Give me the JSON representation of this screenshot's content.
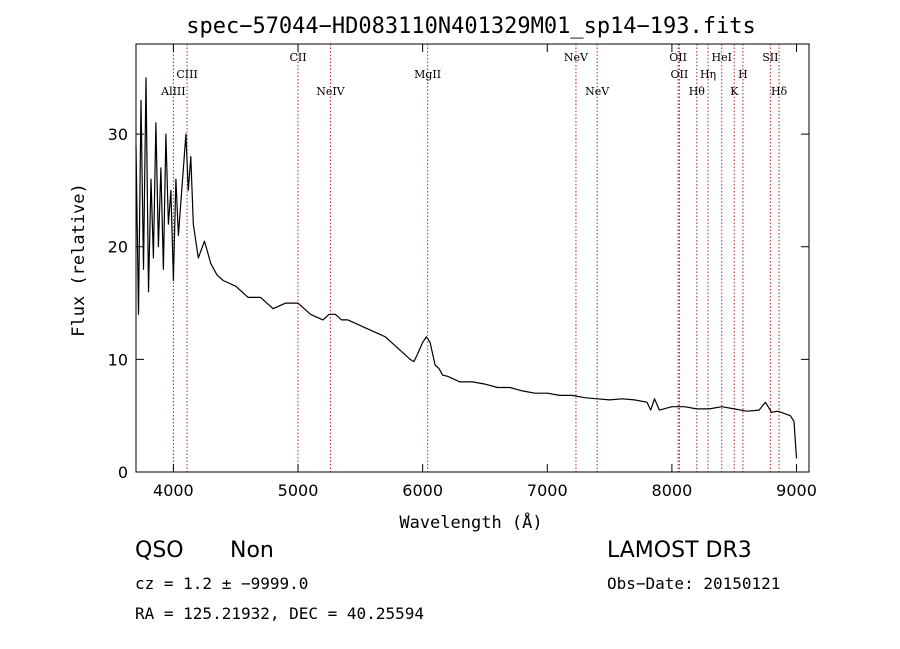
{
  "chart_data": {
    "type": "line",
    "title": "spec−57044−HD083110N401329M01_sp14−193.fits",
    "xlabel": "Wavelength (Å)",
    "ylabel": "Flux (relative)",
    "xlim": [
      3700,
      9100
    ],
    "ylim": [
      0,
      38
    ],
    "xticks": [
      4000,
      5000,
      6000,
      7000,
      8000,
      9000
    ],
    "yticks": [
      0,
      10,
      20,
      30
    ],
    "grid": false,
    "series": [
      {
        "name": "spectrum",
        "color": "#000000",
        "x": [
          3700,
          3720,
          3740,
          3760,
          3780,
          3800,
          3820,
          3840,
          3860,
          3880,
          3900,
          3920,
          3940,
          3960,
          3980,
          4000,
          4020,
          4040,
          4060,
          4080,
          4100,
          4120,
          4140,
          4160,
          4200,
          4250,
          4300,
          4350,
          4400,
          4500,
          4600,
          4700,
          4800,
          4900,
          5000,
          5100,
          5200,
          5250,
          5300,
          5350,
          5400,
          5500,
          5600,
          5700,
          5800,
          5850,
          5900,
          5930,
          5960,
          6000,
          6030,
          6060,
          6080,
          6100,
          6130,
          6160,
          6200,
          6300,
          6400,
          6500,
          6600,
          6700,
          6800,
          6900,
          7000,
          7100,
          7200,
          7300,
          7400,
          7500,
          7600,
          7700,
          7800,
          7830,
          7860,
          7900,
          8000,
          8100,
          8200,
          8300,
          8400,
          8500,
          8600,
          8700,
          8750,
          8800,
          8850,
          8900,
          8950,
          8980,
          9000
        ],
        "y": [
          29,
          14,
          33,
          18,
          35,
          16,
          26,
          19,
          31,
          20,
          27,
          18,
          30,
          22,
          25,
          17,
          26,
          21,
          24,
          27,
          30,
          25,
          28,
          22,
          19,
          20.5,
          18.5,
          17.5,
          17,
          16.5,
          15.5,
          15.5,
          14.5,
          15,
          15,
          14,
          13.5,
          14,
          14,
          13.5,
          13.5,
          13,
          12.5,
          12,
          11,
          10.5,
          10,
          9.8,
          10.5,
          11.5,
          12,
          11.5,
          10.5,
          9.5,
          9.2,
          8.6,
          8.5,
          8,
          8,
          7.8,
          7.5,
          7.5,
          7.2,
          7,
          7,
          6.8,
          6.8,
          6.6,
          6.5,
          6.4,
          6.5,
          6.4,
          6.2,
          5.5,
          6.5,
          5.5,
          5.8,
          5.8,
          5.6,
          5.6,
          5.8,
          5.6,
          5.4,
          5.5,
          6.2,
          5.3,
          5.4,
          5.2,
          5,
          4.5,
          1.2
        ]
      }
    ],
    "lines": [
      {
        "label": "AlIII",
        "wave": 4000,
        "row": 3
      },
      {
        "label": "CIII",
        "wave": 4110,
        "row": 2
      },
      {
        "label": "CII",
        "wave": 5000,
        "row": 1
      },
      {
        "label": "NeIV",
        "wave": 5260,
        "row": 3
      },
      {
        "label": "MgII",
        "wave": 6040,
        "row": 2
      },
      {
        "label": "NeV",
        "wave": 7230,
        "row": 1
      },
      {
        "label": "NeV",
        "wave": 7400,
        "row": 3
      },
      {
        "label": "OII",
        "wave": 8050,
        "row": 1
      },
      {
        "label": "OII",
        "wave": 8060,
        "row": 2
      },
      {
        "label": "Hθ",
        "wave": 8200,
        "row": 3
      },
      {
        "label": "Hη",
        "wave": 8290,
        "row": 2
      },
      {
        "label": "HeI",
        "wave": 8400,
        "row": 1
      },
      {
        "label": "K",
        "wave": 8500,
        "row": 3
      },
      {
        "label": "H",
        "wave": 8570,
        "row": 2
      },
      {
        "label": "SII",
        "wave": 8790,
        "row": 1
      },
      {
        "label": "Hδ",
        "wave": 8860,
        "row": 3
      }
    ],
    "line_color": "#b22222"
  },
  "info": {
    "class": "QSO",
    "subclass": "Non",
    "cz": "cz = 1.2 ± −9999.0",
    "radec": "RA = 125.21932, DEC =  40.25594",
    "survey": "LAMOST DR3",
    "obsdate": "Obs−Date: 20150121"
  }
}
